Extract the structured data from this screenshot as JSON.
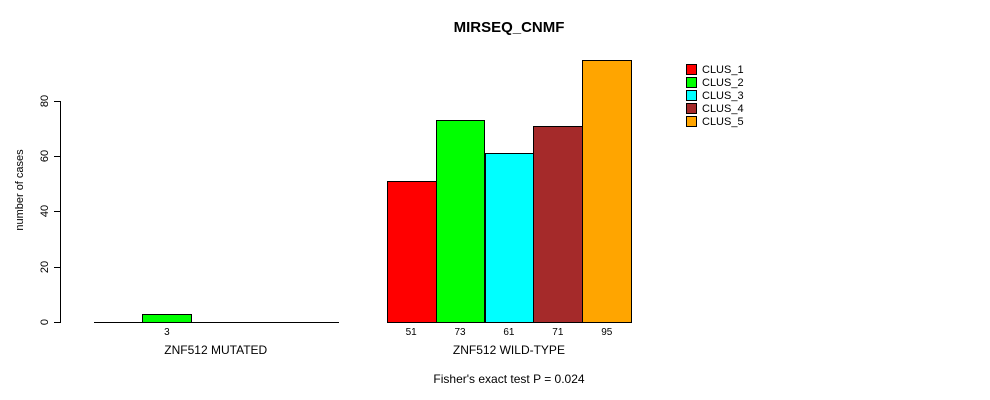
{
  "title": "MIRSEQ_CNMF",
  "y_axis": {
    "label": "number of cases",
    "ticks": [
      0,
      20,
      40,
      60,
      80
    ]
  },
  "footer": "Fisher's exact test P = 0.024",
  "legend": {
    "entries": [
      {
        "label": "CLUS_1",
        "color": "#FF0000"
      },
      {
        "label": "CLUS_2",
        "color": "#00FF00"
      },
      {
        "label": "CLUS_3",
        "color": "#00FFFF"
      },
      {
        "label": "CLUS_4",
        "color": "#A52A2A"
      },
      {
        "label": "CLUS_5",
        "color": "#FFA500"
      }
    ]
  },
  "chart_data": {
    "type": "bar",
    "title": "MIRSEQ_CNMF",
    "ylabel": "number of cases",
    "ylim": [
      0,
      95
    ],
    "yticks": [
      0,
      20,
      40,
      60,
      80
    ],
    "grid": false,
    "legend_position": "right",
    "series_names": [
      "CLUS_1",
      "CLUS_2",
      "CLUS_3",
      "CLUS_4",
      "CLUS_5"
    ],
    "series_colors": [
      "#FF0000",
      "#00FF00",
      "#00FFFF",
      "#A52A2A",
      "#FFA500"
    ],
    "groups": [
      {
        "label": "ZNF512 MUTATED",
        "values": [
          0,
          3,
          0,
          0,
          0
        ],
        "value_labels": [
          "",
          "3",
          "",
          "",
          ""
        ]
      },
      {
        "label": "ZNF512 WILD-TYPE",
        "values": [
          51,
          73,
          61,
          71,
          95
        ],
        "value_labels": [
          "51",
          "73",
          "61",
          "71",
          "95"
        ]
      }
    ],
    "annotation": "Fisher's exact test P = 0.024"
  }
}
